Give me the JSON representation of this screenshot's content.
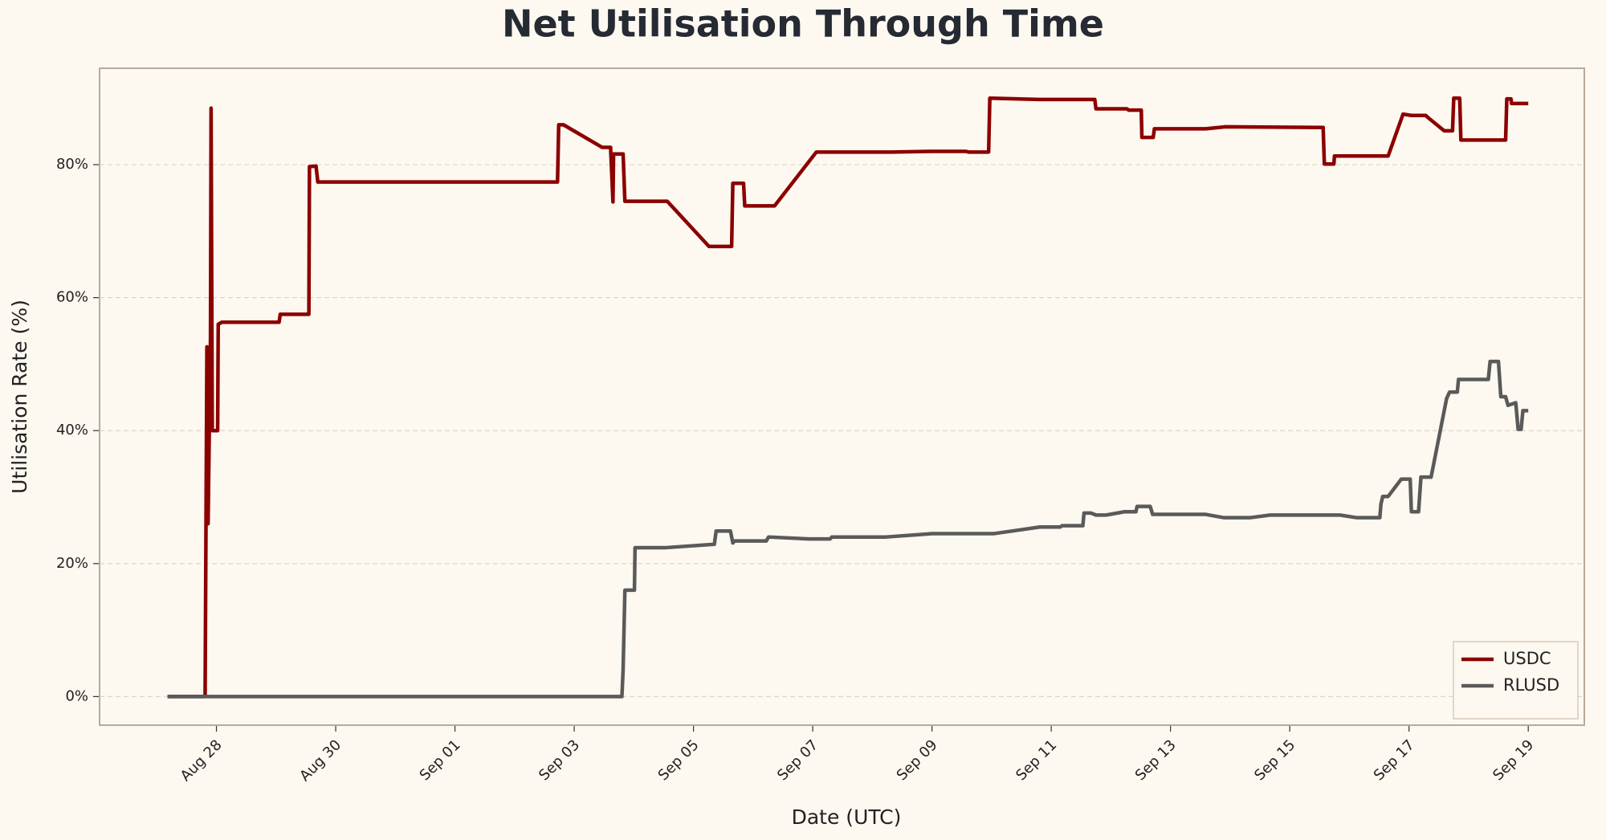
{
  "chart_data": {
    "type": "line",
    "title": "Net Utilisation Through Time",
    "xlabel": "Date (UTC)",
    "ylabel": "Utilisation Rate (%)",
    "xlim": [
      26.04,
      50.94
    ],
    "ylim": [
      -4.3,
      94.5
    ],
    "xticks": [
      {
        "value": 28,
        "label": "Aug 28"
      },
      {
        "value": 30,
        "label": "Aug 30"
      },
      {
        "value": 32,
        "label": "Sep 01"
      },
      {
        "value": 34,
        "label": "Sep 03"
      },
      {
        "value": 36,
        "label": "Sep 05"
      },
      {
        "value": 38,
        "label": "Sep 07"
      },
      {
        "value": 40,
        "label": "Sep 09"
      },
      {
        "value": 42,
        "label": "Sep 11"
      },
      {
        "value": 44,
        "label": "Sep 13"
      },
      {
        "value": 46,
        "label": "Sep 15"
      },
      {
        "value": 48,
        "label": "Sep 17"
      },
      {
        "value": 50,
        "label": "Sep 19"
      }
    ],
    "yticks": [
      {
        "value": 0,
        "label": "0%"
      },
      {
        "value": 20,
        "label": "20%"
      },
      {
        "value": 40,
        "label": "40%"
      },
      {
        "value": 60,
        "label": "60%"
      },
      {
        "value": 80,
        "label": "80%"
      }
    ],
    "grid": true,
    "legend": "lower right",
    "series": [
      {
        "name": "USDC",
        "color": "#8b0000",
        "x": [
          27.18,
          27.81,
          27.84,
          27.86,
          27.9,
          27.91,
          27.93,
          28.02,
          28.03,
          28.09,
          29.05,
          29.07,
          29.55,
          29.56,
          29.67,
          29.7,
          33.72,
          33.74,
          33.82,
          34.47,
          34.61,
          34.65,
          34.66,
          34.82,
          34.85,
          35.56,
          36.26,
          36.64,
          36.66,
          36.84,
          36.86,
          37.36,
          38.06,
          39.32,
          40.0,
          40.57,
          40.61,
          40.95,
          40.97,
          41.81,
          42.73,
          42.75,
          43.27,
          43.3,
          43.51,
          43.52,
          43.71,
          43.73,
          44.59,
          44.92,
          46.56,
          46.58,
          46.74,
          46.75,
          47.65,
          47.9,
          48.04,
          48.28,
          48.33,
          48.59,
          48.73,
          48.75,
          48.85,
          48.87,
          49.62,
          49.64,
          49.71,
          49.72,
          50.0
        ],
        "values": [
          0,
          0,
          52.6,
          26,
          54,
          88.5,
          40,
          40,
          56,
          56.3,
          56.3,
          57.5,
          57.5,
          79.7,
          79.8,
          77.4,
          77.4,
          86,
          86,
          82.6,
          82.6,
          74.4,
          81.6,
          81.6,
          74.5,
          74.5,
          67.7,
          67.7,
          77.2,
          77.2,
          73.8,
          73.8,
          81.9,
          81.9,
          82,
          82,
          81.9,
          81.9,
          90,
          89.8,
          89.8,
          88.4,
          88.4,
          88.2,
          88.2,
          84.1,
          84.1,
          85.4,
          85.4,
          85.7,
          85.6,
          80.1,
          80.1,
          81.3,
          81.3,
          87.6,
          87.4,
          87.4,
          87,
          85.1,
          85.1,
          90,
          90,
          83.7,
          83.7,
          89.9,
          89.9,
          89.2,
          89.2
        ]
      },
      {
        "name": "RLUSD",
        "color": "#5a5a5a",
        "x": [
          27.18,
          34.8,
          34.82,
          34.85,
          35.01,
          35.02,
          35.54,
          36.35,
          36.38,
          36.62,
          36.66,
          36.69,
          37.22,
          37.26,
          37.94,
          38.29,
          38.32,
          39.23,
          40.0,
          41.03,
          41.81,
          42.15,
          42.18,
          42.53,
          42.55,
          42.67,
          42.75,
          42.92,
          43.23,
          43.42,
          43.44,
          43.66,
          43.7,
          44.59,
          44.9,
          45.33,
          45.67,
          46.84,
          47.13,
          47.51,
          47.53,
          47.56,
          47.65,
          47.87,
          48.02,
          48.04,
          48.16,
          48.2,
          48.37,
          48.63,
          48.68,
          48.81,
          48.83,
          49.33,
          49.36,
          49.5,
          49.54,
          49.62,
          49.66,
          49.79,
          49.83,
          49.88,
          49.91,
          50.0
        ],
        "values": [
          0,
          0,
          4,
          16,
          16,
          22.4,
          22.4,
          22.9,
          24.9,
          24.9,
          23.1,
          23.4,
          23.4,
          24,
          23.7,
          23.7,
          24,
          24,
          24.5,
          24.5,
          25.5,
          25.5,
          25.7,
          25.7,
          27.6,
          27.6,
          27.3,
          27.3,
          27.8,
          27.8,
          28.6,
          28.6,
          27.4,
          27.4,
          26.9,
          26.9,
          27.3,
          27.3,
          26.9,
          26.9,
          29,
          30.1,
          30.1,
          32.7,
          32.7,
          27.8,
          27.8,
          33,
          33,
          44.8,
          45.8,
          45.8,
          47.7,
          47.7,
          50.4,
          50.4,
          45.1,
          45.1,
          43.8,
          44.2,
          40.2,
          40.2,
          43,
          43
        ]
      }
    ]
  }
}
